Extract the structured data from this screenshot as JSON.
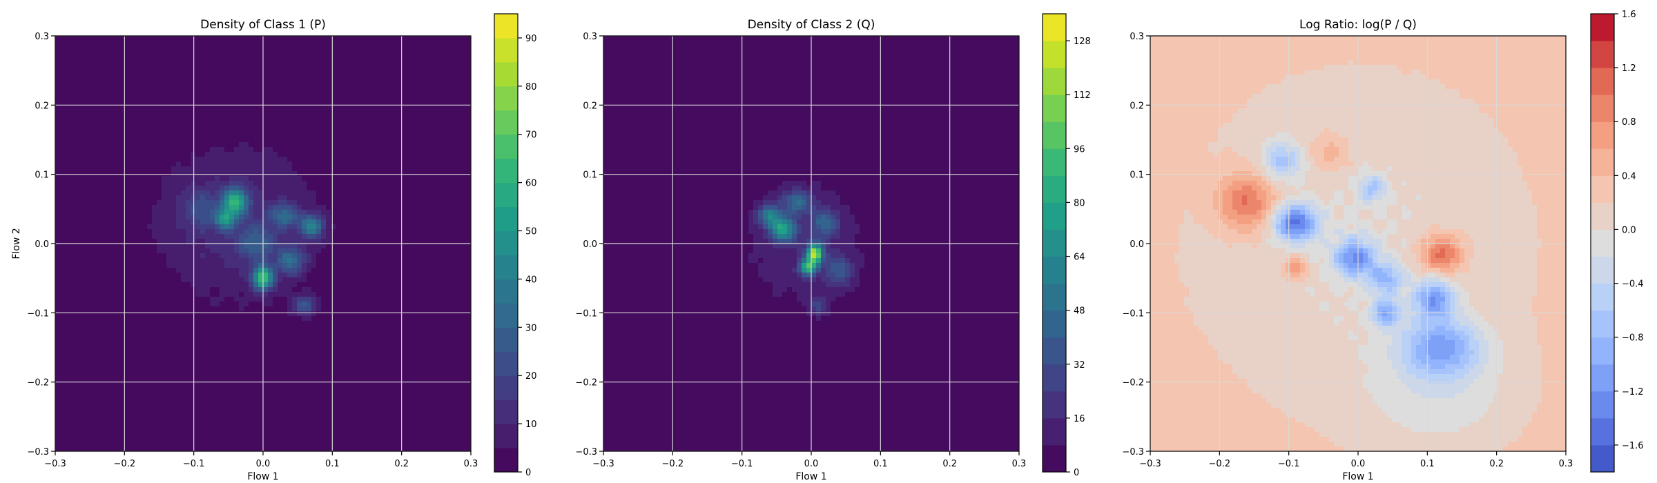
{
  "chart_data": [
    {
      "type": "heatmap",
      "plot": "filled-contour",
      "title": "Density of Class 1 (P)",
      "xlabel": "Flow 1",
      "ylabel": "Flow 2",
      "xlim": [
        -0.3,
        0.3
      ],
      "ylim": [
        -0.3,
        0.3
      ],
      "xticks": [
        -0.3,
        -0.2,
        -0.1,
        0.0,
        0.1,
        0.2,
        0.3
      ],
      "yticks": [
        -0.3,
        -0.2,
        -0.1,
        0.0,
        0.1,
        0.2,
        0.3
      ],
      "grid": true,
      "colormap": "viridis",
      "colorbar": {
        "min": 0,
        "max": 95,
        "ticks": [
          0,
          10,
          20,
          30,
          40,
          50,
          60,
          70,
          80,
          90
        ],
        "levels": 19
      },
      "blobs": [
        {
          "x": -0.04,
          "y": 0.03,
          "sx": 0.09,
          "sy": 0.085,
          "amp": 12
        },
        {
          "x": -0.04,
          "y": 0.06,
          "sx": 0.012,
          "sy": 0.014,
          "amp": 52
        },
        {
          "x": -0.055,
          "y": 0.035,
          "sx": 0.01,
          "sy": 0.01,
          "amp": 38
        },
        {
          "x": 0.0,
          "y": -0.05,
          "sx": 0.01,
          "sy": 0.012,
          "amp": 62
        },
        {
          "x": 0.07,
          "y": 0.025,
          "sx": 0.012,
          "sy": 0.012,
          "amp": 38
        },
        {
          "x": 0.03,
          "y": 0.04,
          "sx": 0.014,
          "sy": 0.012,
          "amp": 26
        },
        {
          "x": -0.01,
          "y": 0.0,
          "sx": 0.02,
          "sy": 0.018,
          "amp": 20
        },
        {
          "x": 0.04,
          "y": -0.025,
          "sx": 0.014,
          "sy": 0.014,
          "amp": 28
        },
        {
          "x": 0.06,
          "y": -0.09,
          "sx": 0.012,
          "sy": 0.01,
          "amp": 24
        },
        {
          "x": -0.09,
          "y": 0.05,
          "sx": 0.02,
          "sy": 0.02,
          "amp": 14
        }
      ]
    },
    {
      "type": "heatmap",
      "plot": "filled-contour",
      "title": "Density of Class 2 (Q)",
      "xlabel": "Flow 1",
      "ylabel": "",
      "xlim": [
        -0.3,
        0.3
      ],
      "ylim": [
        -0.3,
        0.3
      ],
      "xticks": [
        -0.3,
        -0.2,
        -0.1,
        0.0,
        0.1,
        0.2,
        0.3
      ],
      "yticks": [
        -0.3,
        -0.2,
        -0.1,
        0.0,
        0.1,
        0.2,
        0.3
      ],
      "grid": true,
      "colormap": "viridis",
      "colorbar": {
        "min": 0,
        "max": 136,
        "ticks": [
          0,
          16,
          32,
          48,
          64,
          80,
          96,
          112,
          128
        ],
        "levels": 17
      },
      "blobs": [
        {
          "x": -0.01,
          "y": 0.0,
          "sx": 0.07,
          "sy": 0.075,
          "amp": 14
        },
        {
          "x": 0.005,
          "y": -0.015,
          "sx": 0.008,
          "sy": 0.01,
          "amp": 110
        },
        {
          "x": -0.005,
          "y": -0.035,
          "sx": 0.008,
          "sy": 0.008,
          "amp": 80
        },
        {
          "x": -0.04,
          "y": 0.02,
          "sx": 0.012,
          "sy": 0.012,
          "amp": 68
        },
        {
          "x": -0.06,
          "y": 0.04,
          "sx": 0.012,
          "sy": 0.012,
          "amp": 50
        },
        {
          "x": -0.02,
          "y": 0.06,
          "sx": 0.014,
          "sy": 0.012,
          "amp": 40
        },
        {
          "x": 0.02,
          "y": 0.03,
          "sx": 0.014,
          "sy": 0.014,
          "amp": 36
        },
        {
          "x": 0.04,
          "y": -0.04,
          "sx": 0.014,
          "sy": 0.016,
          "amp": 30
        },
        {
          "x": 0.01,
          "y": -0.09,
          "sx": 0.01,
          "sy": 0.01,
          "amp": 22
        }
      ]
    },
    {
      "type": "heatmap",
      "plot": "filled-contour",
      "title": "Log Ratio: log(P / Q)",
      "xlabel": "Flow 1",
      "ylabel": "",
      "xlim": [
        -0.3,
        0.3
      ],
      "ylim": [
        -0.3,
        0.3
      ],
      "xticks": [
        -0.3,
        -0.2,
        -0.1,
        0.0,
        0.1,
        0.2,
        0.3
      ],
      "yticks": [
        -0.3,
        -0.2,
        -0.1,
        0.0,
        0.1,
        0.2,
        0.3
      ],
      "grid": true,
      "colormap": "coolwarm",
      "colorbar": {
        "min": -1.8,
        "max": 1.6,
        "ticks": [
          -1.6,
          -1.2,
          -0.8,
          -0.4,
          0.0,
          0.4,
          0.8,
          1.2,
          1.6
        ],
        "levels": 17
      },
      "baseline": 0.35,
      "blobs": [
        {
          "x": -0.16,
          "y": 0.06,
          "sx": 0.03,
          "sy": 0.03,
          "amp": 0.9
        },
        {
          "x": 0.12,
          "y": -0.015,
          "sx": 0.022,
          "sy": 0.02,
          "amp": 1.0
        },
        {
          "x": -0.09,
          "y": -0.035,
          "sx": 0.012,
          "sy": 0.012,
          "amp": 0.7
        },
        {
          "x": -0.04,
          "y": 0.13,
          "sx": 0.02,
          "sy": 0.02,
          "amp": 0.4
        },
        {
          "x": -0.09,
          "y": 0.03,
          "sx": 0.022,
          "sy": 0.018,
          "amp": -1.6
        },
        {
          "x": -0.005,
          "y": -0.02,
          "sx": 0.02,
          "sy": 0.02,
          "amp": -1.3
        },
        {
          "x": 0.11,
          "y": -0.08,
          "sx": 0.02,
          "sy": 0.02,
          "amp": -1.2
        },
        {
          "x": 0.12,
          "y": -0.15,
          "sx": 0.04,
          "sy": 0.03,
          "amp": -1.1
        },
        {
          "x": 0.04,
          "y": -0.05,
          "sx": 0.018,
          "sy": 0.016,
          "amp": -0.9
        },
        {
          "x": -0.11,
          "y": 0.12,
          "sx": 0.02,
          "sy": 0.02,
          "amp": -0.8
        },
        {
          "x": 0.02,
          "y": 0.08,
          "sx": 0.014,
          "sy": 0.014,
          "amp": -0.7
        },
        {
          "x": 0.04,
          "y": -0.1,
          "sx": 0.014,
          "sy": 0.014,
          "amp": -1.0
        },
        {
          "x": 0.0,
          "y": 0.0,
          "sx": 0.2,
          "sy": 0.2,
          "amp": -0.35
        },
        {
          "x": 0.12,
          "y": -0.22,
          "sx": 0.08,
          "sy": 0.06,
          "amp": -0.35
        }
      ]
    }
  ]
}
